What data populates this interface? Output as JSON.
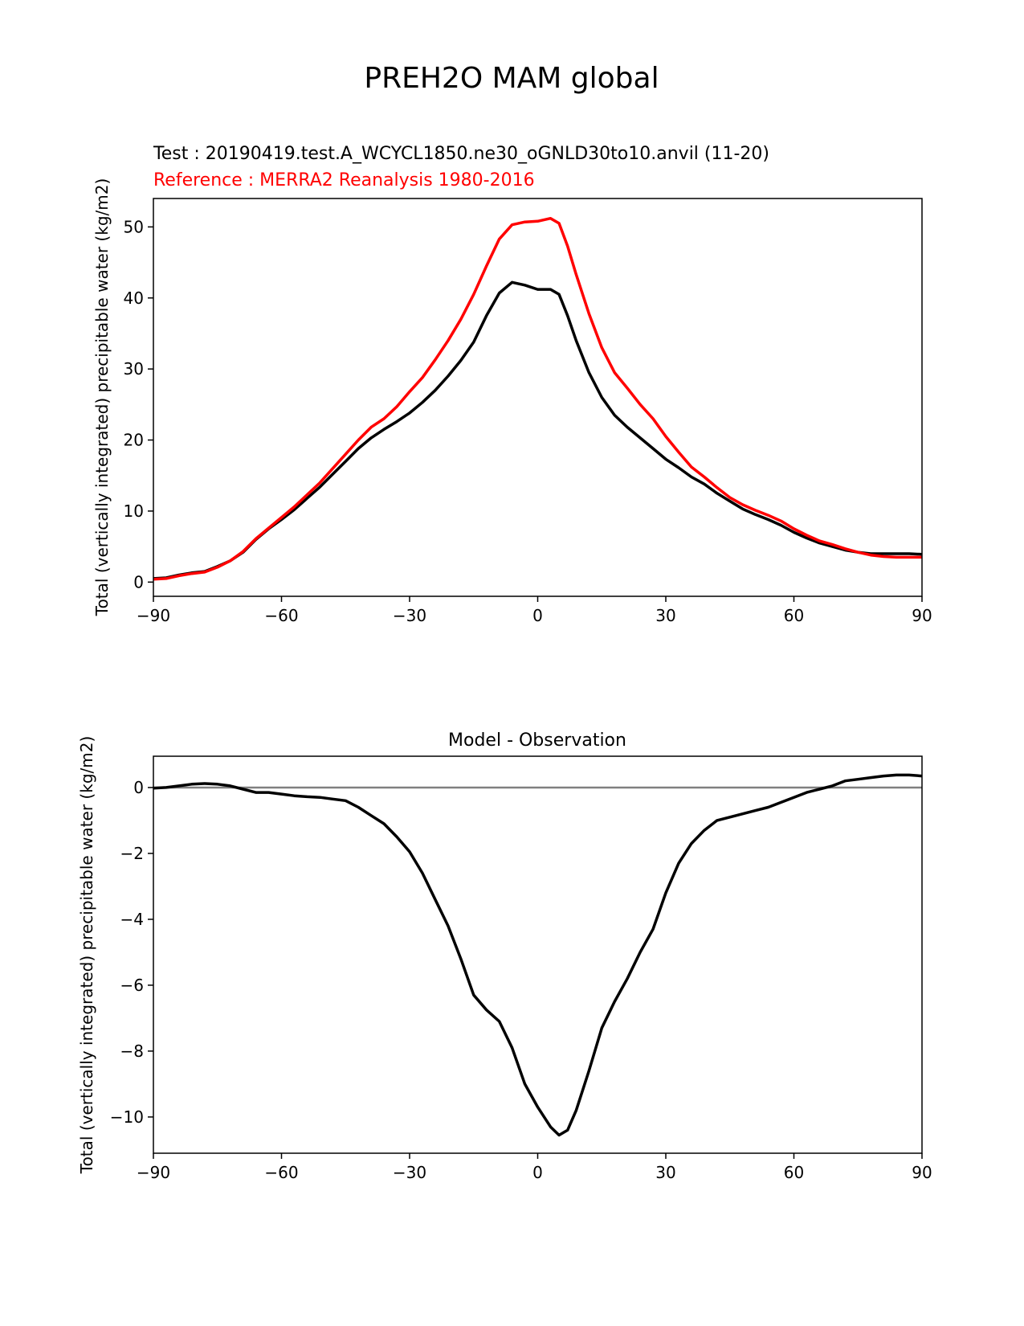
{
  "figure": {
    "suptitle": "PREH2O MAM global"
  },
  "chart_data": [
    {
      "type": "line",
      "title_test": "Test : 20190419.test.A_WCYCL1850.ne30_oGNLD30to10.anvil (11-20)",
      "title_ref": "Reference : MERRA2 Reanalysis 1980-2016",
      "xlabel": "",
      "ylabel": "Total (vertically integrated) precipitable water (kg/m2)",
      "xlim": [
        -90,
        90
      ],
      "ylim": [
        -2,
        54
      ],
      "xticks": [
        -90,
        -60,
        -30,
        0,
        30,
        60,
        90
      ],
      "xtick_labels": [
        "−90",
        "−60",
        "−30",
        "0",
        "30",
        "60",
        "90"
      ],
      "yticks": [
        0,
        10,
        20,
        30,
        40,
        50
      ],
      "ytick_labels": [
        "0",
        "10",
        "20",
        "30",
        "40",
        "50"
      ],
      "series": [
        {
          "name": "Test",
          "color": "#000000",
          "x": [
            -90,
            -87,
            -84,
            -81,
            -78,
            -75,
            -72,
            -69,
            -66,
            -63,
            -60,
            -57,
            -54,
            -51,
            -48,
            -45,
            -42,
            -39,
            -36,
            -33,
            -30,
            -27,
            -24,
            -21,
            -18,
            -15,
            -12,
            -9,
            -6,
            -3,
            0,
            3,
            5,
            7,
            9,
            12,
            15,
            18,
            21,
            24,
            27,
            30,
            33,
            36,
            39,
            42,
            45,
            48,
            51,
            54,
            57,
            60,
            63,
            66,
            69,
            72,
            75,
            78,
            81,
            84,
            87,
            90
          ],
          "values": [
            0.5,
            0.6,
            1.0,
            1.3,
            1.5,
            2.2,
            3.0,
            4.2,
            6.0,
            7.5,
            8.8,
            10.2,
            11.8,
            13.4,
            15.2,
            17.0,
            18.8,
            20.3,
            21.5,
            22.6,
            23.8,
            25.3,
            27.0,
            29.0,
            31.2,
            33.8,
            37.5,
            40.7,
            42.2,
            41.8,
            41.2,
            41.2,
            40.5,
            37.5,
            34.0,
            29.5,
            26.0,
            23.5,
            21.8,
            20.3,
            18.8,
            17.3,
            16.1,
            14.8,
            13.8,
            12.5,
            11.4,
            10.3,
            9.5,
            8.8,
            8.0,
            7.0,
            6.2,
            5.5,
            5.0,
            4.5,
            4.2,
            4.0,
            4.0,
            4.0,
            4.0,
            3.9
          ]
        },
        {
          "name": "Reference",
          "color": "#ff0000",
          "x": [
            -90,
            -87,
            -84,
            -81,
            -78,
            -75,
            -72,
            -69,
            -66,
            -63,
            -60,
            -57,
            -54,
            -51,
            -48,
            -45,
            -42,
            -39,
            -36,
            -33,
            -30,
            -27,
            -24,
            -21,
            -18,
            -15,
            -12,
            -9,
            -6,
            -3,
            0,
            3,
            5,
            7,
            9,
            12,
            15,
            18,
            21,
            24,
            27,
            30,
            33,
            36,
            39,
            42,
            45,
            48,
            51,
            54,
            57,
            60,
            63,
            66,
            69,
            72,
            75,
            78,
            81,
            84,
            87,
            90
          ],
          "values": [
            0.4,
            0.5,
            0.9,
            1.2,
            1.4,
            2.1,
            3.0,
            4.3,
            6.1,
            7.6,
            9.1,
            10.6,
            12.3,
            14.0,
            16.0,
            18.0,
            20.0,
            21.8,
            23.0,
            24.7,
            26.8,
            28.8,
            31.3,
            34.0,
            37.0,
            40.5,
            44.5,
            48.3,
            50.3,
            50.7,
            50.8,
            51.2,
            50.5,
            47.3,
            43.3,
            37.8,
            33.0,
            29.5,
            27.3,
            25.0,
            23.0,
            20.5,
            18.3,
            16.2,
            14.8,
            13.3,
            11.9,
            10.9,
            10.1,
            9.4,
            8.6,
            7.5,
            6.6,
            5.8,
            5.3,
            4.7,
            4.2,
            3.8,
            3.6,
            3.5,
            3.5,
            3.5
          ]
        }
      ]
    },
    {
      "type": "line",
      "title": "Model - Observation",
      "xlabel": "",
      "ylabel": "Total (vertically integrated) precipitable water (kg/m2)",
      "xlim": [
        -90,
        90
      ],
      "ylim": [
        -11.1,
        0.95
      ],
      "xticks": [
        -90,
        -60,
        -30,
        0,
        30,
        60,
        90
      ],
      "xtick_labels": [
        "−90",
        "−60",
        "−30",
        "0",
        "30",
        "60",
        "90"
      ],
      "yticks": [
        0,
        -2,
        -4,
        -6,
        -8,
        -10
      ],
      "ytick_labels": [
        "0",
        "−2",
        "−4",
        "−6",
        "−8",
        "−10"
      ],
      "zero_line": {
        "value": 0,
        "color": "#808080"
      },
      "series": [
        {
          "name": "Model - Observation",
          "color": "#000000",
          "x": [
            -90,
            -87,
            -84,
            -81,
            -78,
            -75,
            -72,
            -69,
            -66,
            -63,
            -60,
            -57,
            -54,
            -51,
            -48,
            -45,
            -42,
            -39,
            -36,
            -33,
            -30,
            -27,
            -24,
            -21,
            -18,
            -15,
            -12,
            -9,
            -6,
            -3,
            0,
            3,
            5,
            7,
            9,
            12,
            15,
            18,
            21,
            24,
            27,
            30,
            33,
            36,
            39,
            42,
            45,
            48,
            51,
            54,
            57,
            60,
            63,
            66,
            69,
            72,
            75,
            78,
            81,
            84,
            87,
            90
          ],
          "values": [
            -0.02,
            0.0,
            0.05,
            0.1,
            0.12,
            0.1,
            0.05,
            -0.05,
            -0.15,
            -0.15,
            -0.2,
            -0.25,
            -0.28,
            -0.3,
            -0.35,
            -0.4,
            -0.6,
            -0.85,
            -1.1,
            -1.5,
            -1.95,
            -2.6,
            -3.4,
            -4.2,
            -5.2,
            -6.3,
            -6.75,
            -7.1,
            -7.9,
            -9.0,
            -9.7,
            -10.3,
            -10.55,
            -10.4,
            -9.8,
            -8.6,
            -7.3,
            -6.5,
            -5.8,
            -5.0,
            -4.3,
            -3.2,
            -2.3,
            -1.7,
            -1.3,
            -1.0,
            -0.9,
            -0.8,
            -0.7,
            -0.6,
            -0.45,
            -0.3,
            -0.15,
            -0.05,
            0.05,
            0.2,
            0.25,
            0.3,
            0.35,
            0.38,
            0.38,
            0.35
          ]
        }
      ]
    }
  ]
}
